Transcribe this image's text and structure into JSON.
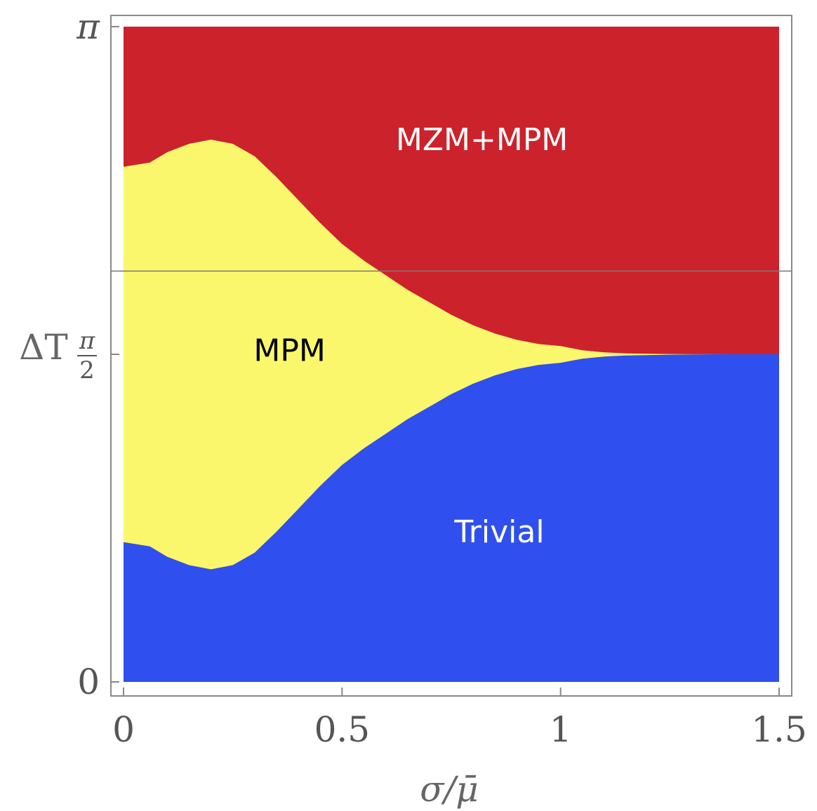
{
  "chart_data": {
    "type": "area",
    "title": "",
    "xlabel": "σ/μ̄",
    "ylabel": "ΔT",
    "xlim": [
      0,
      1.5
    ],
    "ylim": [
      0,
      3.14159
    ],
    "x_ticks": [
      {
        "value": 0,
        "label": "0"
      },
      {
        "value": 0.5,
        "label": "0.5"
      },
      {
        "value": 1,
        "label": "1"
      },
      {
        "value": 1.5,
        "label": "1.5"
      }
    ],
    "y_ticks": [
      {
        "value": 0,
        "label": "0"
      },
      {
        "value": 1.5708,
        "label": "π/2",
        "num": "π",
        "den": "2"
      },
      {
        "value": 3.14159,
        "label": "π"
      }
    ],
    "reference_line_y": 1.97,
    "colors": {
      "mzm_mpm": "#cc222c",
      "mpm": "#fbf76c",
      "trivial": "#2f50ee",
      "frame": "#888888",
      "refline": "#777777"
    },
    "boundary_x": [
      0,
      0.03,
      0.06,
      0.1,
      0.15,
      0.2,
      0.25,
      0.3,
      0.35,
      0.4,
      0.45,
      0.5,
      0.55,
      0.6,
      0.65,
      0.7,
      0.75,
      0.8,
      0.85,
      0.9,
      0.95,
      1.0,
      1.05,
      1.1,
      1.15,
      1.2,
      1.25,
      1.3,
      1.4,
      1.5
    ],
    "upper_boundary": [
      2.47,
      2.48,
      2.49,
      2.54,
      2.58,
      2.6,
      2.58,
      2.52,
      2.42,
      2.31,
      2.2,
      2.1,
      2.02,
      1.95,
      1.88,
      1.82,
      1.76,
      1.71,
      1.67,
      1.64,
      1.62,
      1.61,
      1.59,
      1.58,
      1.575,
      1.573,
      1.572,
      1.571,
      1.571,
      1.571
    ],
    "lower_boundary": [
      0.67,
      0.66,
      0.65,
      0.6,
      0.56,
      0.54,
      0.56,
      0.62,
      0.72,
      0.83,
      0.94,
      1.04,
      1.12,
      1.19,
      1.26,
      1.32,
      1.38,
      1.43,
      1.47,
      1.5,
      1.52,
      1.53,
      1.55,
      1.56,
      1.565,
      1.567,
      1.569,
      1.57,
      1.571,
      1.571
    ],
    "regions": [
      {
        "name": "MZM+MPM",
        "label_x": 0.82,
        "label_y": 2.6,
        "color": "#ffffff"
      },
      {
        "name": "MPM",
        "label_x": 0.38,
        "label_y": 1.59,
        "color": "#000000"
      },
      {
        "name": "Trivial",
        "label_x": 0.86,
        "label_y": 0.72,
        "color": "#ffffff"
      }
    ],
    "grid": false
  }
}
